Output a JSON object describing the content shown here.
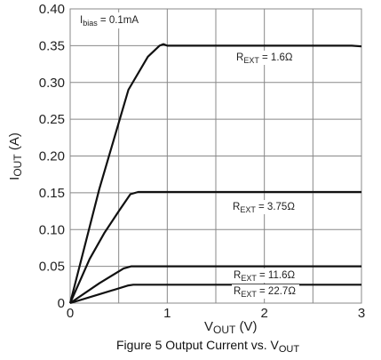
{
  "chart_data": {
    "type": "line",
    "caption": {
      "main": "Figure 5 Output Current vs. V",
      "sub": "OUT"
    },
    "xlabel": {
      "main": "V",
      "sub": "OUT",
      "tail": " (V)"
    },
    "ylabel": {
      "main": "I",
      "sub": "OUT",
      "tail": " (A)"
    },
    "xlim": [
      0,
      3
    ],
    "ylim": [
      0,
      0.4
    ],
    "x_ticks": [
      0,
      1,
      2,
      3
    ],
    "x_tick_labels": [
      "0",
      "1",
      "2",
      "3"
    ],
    "y_ticks": [
      0,
      0.05,
      0.1,
      0.15,
      0.2,
      0.25,
      0.3,
      0.35,
      0.4
    ],
    "y_tick_labels": [
      "0",
      "0.05",
      "0.10",
      "0.15",
      "0.20",
      "0.25",
      "0.30",
      "0.35",
      "0.40"
    ],
    "x_minor_grid": [
      0.5,
      1.5,
      2.5
    ],
    "grid": true,
    "line_color": "#111111",
    "grid_color": "#888888",
    "bias_annotation": {
      "main": "I",
      "sub": "bias",
      "tail": " = 0.1mA"
    },
    "series": [
      {
        "annotation": {
          "main": "R",
          "sub": "EXT",
          "tail": " = 1.6Ω"
        },
        "x": [
          0,
          0.3,
          0.6,
          0.8,
          0.92,
          0.96,
          1.0,
          1.5,
          2.0,
          2.5,
          2.9,
          3.0
        ],
        "y": [
          0,
          0.155,
          0.29,
          0.335,
          0.35,
          0.352,
          0.35,
          0.35,
          0.35,
          0.35,
          0.35,
          0.349
        ]
      },
      {
        "annotation": {
          "main": "R",
          "sub": "EXT",
          "tail": " = 3.75Ω"
        },
        "x": [
          0,
          0.2,
          0.35,
          0.5,
          0.62,
          0.7,
          1.0,
          2.0,
          3.0
        ],
        "y": [
          0,
          0.06,
          0.095,
          0.125,
          0.148,
          0.151,
          0.151,
          0.151,
          0.151
        ]
      },
      {
        "annotation": {
          "main": "R",
          "sub": "EXT",
          "tail": " = 11.6Ω"
        },
        "x": [
          0,
          0.3,
          0.55,
          0.63,
          0.7,
          1.0,
          2.0,
          3.0
        ],
        "y": [
          0,
          0.027,
          0.047,
          0.05,
          0.05,
          0.05,
          0.05,
          0.05
        ]
      },
      {
        "annotation": {
          "main": "R",
          "sub": "EXT",
          "tail": " = 22.7Ω"
        },
        "x": [
          0,
          0.3,
          0.6,
          0.65,
          1.0,
          2.0,
          3.0
        ],
        "y": [
          0,
          0.012,
          0.024,
          0.025,
          0.025,
          0.025,
          0.025
        ]
      }
    ]
  }
}
